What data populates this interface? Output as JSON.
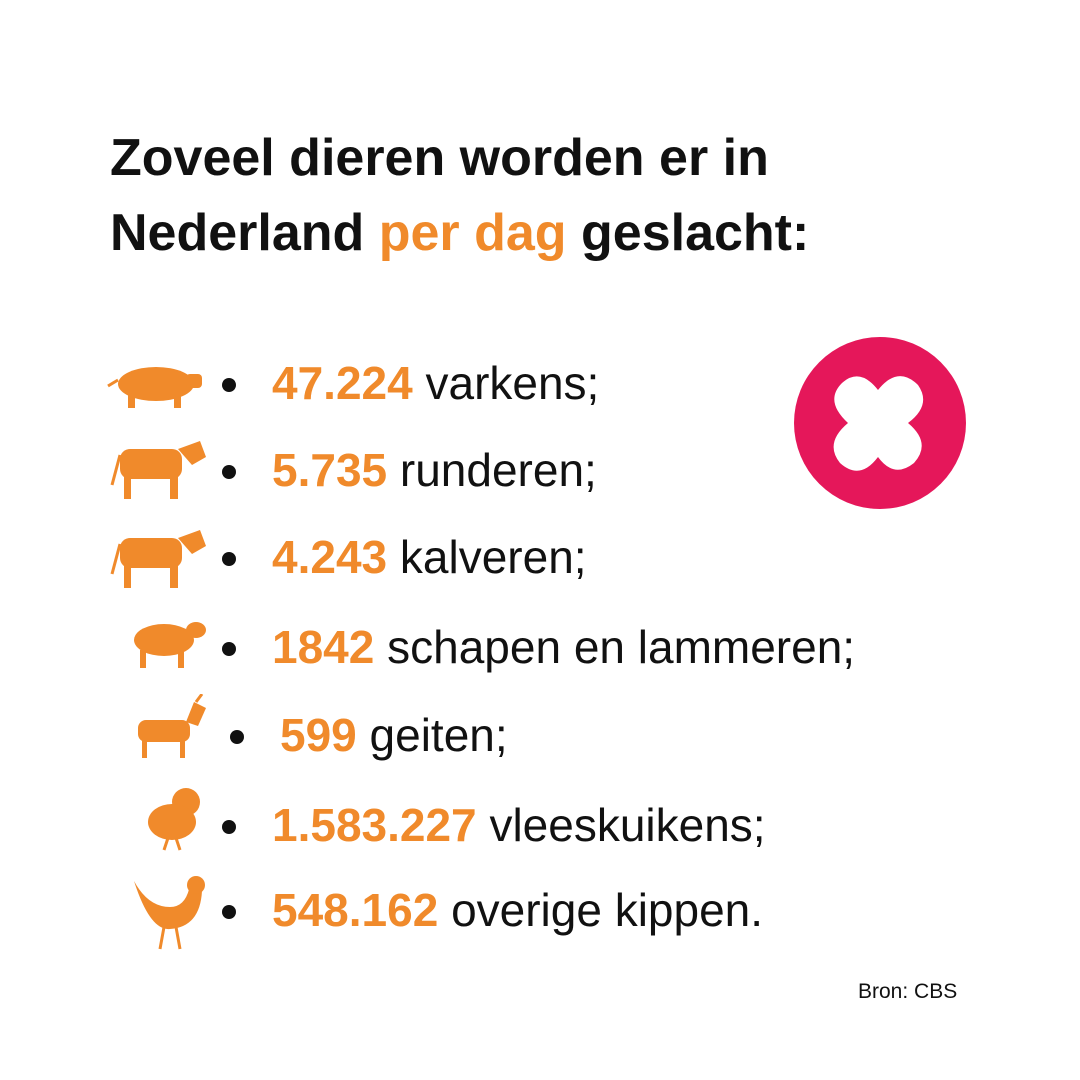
{
  "title": {
    "line1": "Zoveel dieren worden er in",
    "line2_start": "Nederland",
    "line2_highlight": "per dag",
    "line2_end": "geslacht:"
  },
  "items": [
    {
      "number": "47.224",
      "label": "varkens;"
    },
    {
      "number": "5.735",
      "label": "runderen;"
    },
    {
      "number": "4.243",
      "label": "kalveren;"
    },
    {
      "number": "1842",
      "label": "schapen en lammeren;"
    },
    {
      "number": "599",
      "label": "geiten;"
    },
    {
      "number": "1.583.227",
      "label": "vleeskuikens;"
    },
    {
      "number": "548.162",
      "label": "overige kippen."
    }
  ],
  "source": "Bron: CBS"
}
